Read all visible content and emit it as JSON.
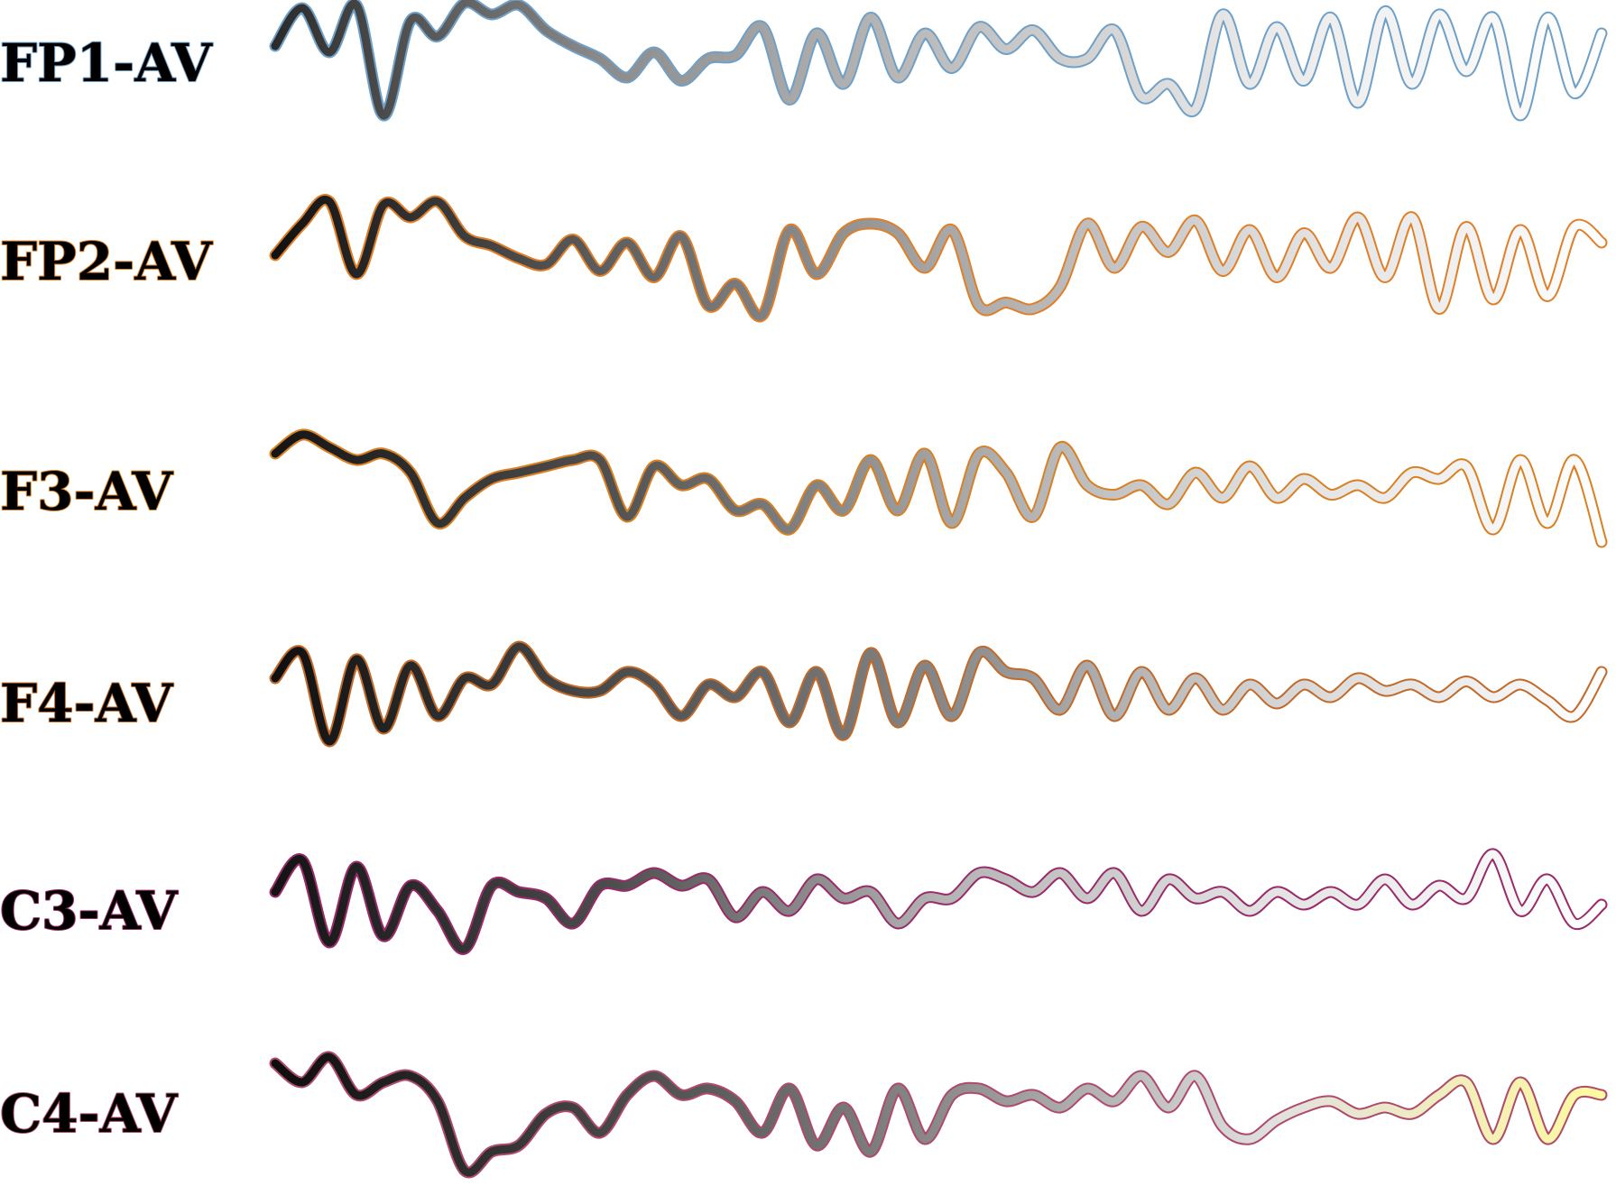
{
  "chart_data": {
    "type": "line",
    "title": "",
    "xlabel": "",
    "ylabel": "",
    "grid": false,
    "legend": "none",
    "series": [
      {
        "name": "FP1-AV",
        "edge_color": "#6fa0c8",
        "gradient": [
          "#2b2b2b",
          "#8c8c8c",
          "#bdbdbd",
          "#ebebeb",
          "#ffffff"
        ],
        "values": [
          0.3,
          0.9,
          0.2,
          0.95,
          -0.8,
          0.7,
          0.45,
          0.98,
          0.8,
          0.95,
          0.55,
          0.3,
          0.1,
          -0.2,
          0.2,
          -0.25,
          0.1,
          0.15,
          0.6,
          -0.55,
          0.5,
          -0.3,
          0.75,
          -0.2,
          0.5,
          -0.05,
          0.6,
          0.25,
          0.55,
          0.1,
          0.1,
          0.55,
          -0.5,
          -0.3,
          -0.7,
          0.8,
          -0.3,
          0.6,
          -0.25,
          0.75,
          -0.6,
          0.85,
          -0.3,
          0.8,
          -0.1,
          0.75,
          -0.8,
          0.75,
          -0.45,
          0.5
        ]
      },
      {
        "name": "FP2-AV",
        "edge_color": "#e07f28",
        "gradient": [
          "#111111",
          "#5e5e5e",
          "#a6a6a6",
          "#dddddd",
          "#ffffff"
        ],
        "values": [
          0.1,
          0.6,
          0.95,
          -0.2,
          0.9,
          0.7,
          0.95,
          0.4,
          0.25,
          0.05,
          -0.05,
          0.35,
          -0.15,
          0.3,
          -0.25,
          0.4,
          -0.7,
          -0.35,
          -0.85,
          0.5,
          -0.2,
          0.45,
          0.6,
          0.45,
          -0.1,
          0.5,
          -0.7,
          -0.65,
          -0.75,
          -0.4,
          0.6,
          -0.1,
          0.55,
          0.15,
          0.65,
          -0.15,
          0.5,
          -0.25,
          0.45,
          -0.1,
          0.7,
          -0.25,
          0.7,
          -0.75,
          0.55,
          -0.6,
          0.5,
          -0.55,
          0.55,
          0.3
        ]
      },
      {
        "name": "F3-AV",
        "edge_color": "#d98022",
        "gradient": [
          "#151515",
          "#505050",
          "#a3a3a3",
          "#e0e0e0",
          "#ffffff"
        ],
        "values": [
          0.6,
          0.9,
          0.7,
          0.5,
          0.6,
          0.3,
          -0.5,
          -0.1,
          0.2,
          0.3,
          0.4,
          0.5,
          0.5,
          -0.4,
          0.4,
          0.1,
          0.2,
          -0.3,
          -0.2,
          -0.6,
          0.1,
          -0.3,
          0.5,
          -0.3,
          0.6,
          -0.5,
          0.6,
          0.3,
          -0.4,
          0.7,
          0.1,
          -0.05,
          0.1,
          -0.2,
          0.3,
          -0.1,
          0.4,
          -0.1,
          0.2,
          -0.05,
          0.1,
          -0.1,
          0.3,
          0.2,
          0.4,
          -0.6,
          0.5,
          -0.5,
          0.5,
          -0.8
        ]
      },
      {
        "name": "F4-AV",
        "edge_color": "#c26a2a",
        "gradient": [
          "#0f0f0f",
          "#4a4a4a",
          "#878787",
          "#d4d4d4",
          "#ffffff"
        ],
        "values": [
          0.4,
          0.8,
          -0.6,
          0.7,
          -0.4,
          0.6,
          -0.2,
          0.4,
          0.3,
          0.9,
          0.4,
          0.2,
          0.2,
          0.5,
          0.3,
          -0.2,
          0.3,
          0.1,
          0.5,
          -0.3,
          0.5,
          -0.5,
          0.8,
          -0.3,
          0.6,
          -0.2,
          0.8,
          0.5,
          0.4,
          -0.1,
          0.6,
          -0.2,
          0.5,
          -0.1,
          0.4,
          -0.1,
          0.3,
          0.0,
          0.3,
          0.1,
          0.4,
          0.2,
          0.3,
          0.1,
          0.35,
          0.1,
          0.3,
          0.05,
          -0.2,
          0.5
        ]
      },
      {
        "name": "C3-AV",
        "edge_color": "#9a2a6a",
        "gradient": [
          "#131313",
          "#4c4c4c",
          "#b3b3b3",
          "#e3e3e3",
          "#ffffff"
        ],
        "values": [
          0.3,
          0.8,
          -0.5,
          0.7,
          -0.4,
          0.4,
          0.0,
          -0.6,
          0.4,
          0.3,
          0.2,
          -0.2,
          0.4,
          0.4,
          0.6,
          0.4,
          0.5,
          -0.1,
          0.3,
          0.0,
          0.5,
          0.2,
          0.3,
          -0.2,
          0.2,
          0.2,
          0.6,
          0.5,
          0.3,
          0.6,
          0.2,
          0.6,
          0.0,
          0.5,
          0.2,
          0.3,
          0.0,
          0.3,
          0.1,
          0.3,
          0.1,
          0.5,
          0.1,
          0.4,
          0.2,
          0.9,
          0.0,
          0.5,
          -0.2,
          0.1
        ]
      },
      {
        "name": "C4-AV",
        "edge_color": "#b04a6a",
        "gradient": [
          "#0d0d0d",
          "#464646",
          "#8a8a8a",
          "#e0e0e0",
          "#fff9a0"
        ],
        "values": [
          0.8,
          0.5,
          0.9,
          0.3,
          0.5,
          0.6,
          0.2,
          -0.9,
          -0.6,
          -0.5,
          0.0,
          0.1,
          -0.3,
          0.3,
          0.6,
          0.3,
          0.4,
          0.2,
          -0.3,
          0.4,
          -0.5,
          0.1,
          -0.6,
          0.4,
          -0.4,
          0.3,
          0.4,
          0.2,
          0.3,
          0.1,
          0.4,
          0.2,
          0.6,
          0.1,
          0.6,
          -0.2,
          -0.4,
          -0.1,
          0.1,
          0.2,
          0.0,
          0.1,
          0.0,
          0.3,
          0.5,
          -0.4,
          0.5,
          -0.4,
          0.3,
          0.3
        ]
      }
    ]
  }
}
